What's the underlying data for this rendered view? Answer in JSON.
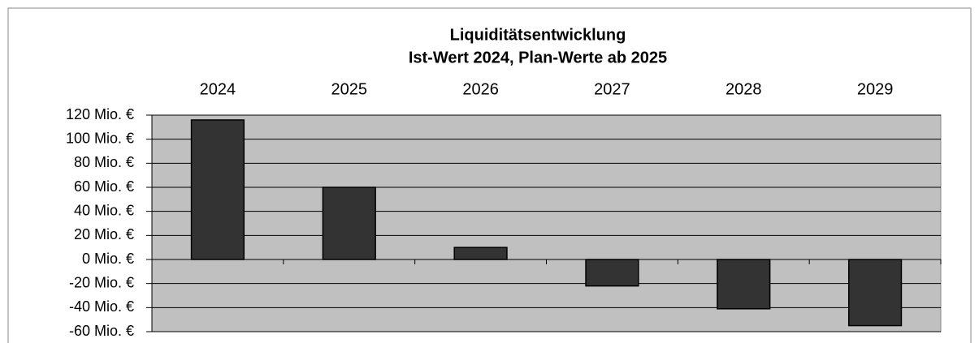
{
  "chart_data": {
    "type": "bar",
    "title": "Liquiditätsentwicklung",
    "subtitle": "Ist-Wert 2024, Plan-Werte ab 2025",
    "categories": [
      "2024",
      "2025",
      "2026",
      "2027",
      "2028",
      "2029"
    ],
    "values": [
      116,
      60,
      10,
      -22,
      -41,
      -55
    ],
    "color": "#333333",
    "background": "#c0c0c0",
    "ylim": [
      -60,
      120
    ],
    "yticks": [
      {
        "value": -60,
        "label": "-60 Mio. €"
      },
      {
        "value": -40,
        "label": "-40 Mio. €"
      },
      {
        "value": -20,
        "label": "-20 Mio. €"
      },
      {
        "value": 0,
        "label": "0 Mio. €"
      },
      {
        "value": 20,
        "label": "20 Mio. €"
      },
      {
        "value": 40,
        "label": "40 Mio. €"
      },
      {
        "value": 60,
        "label": "60 Mio. €"
      },
      {
        "value": 80,
        "label": "80 Mio. €"
      },
      {
        "value": 100,
        "label": "100 Mio. €"
      },
      {
        "value": 120,
        "label": "120 Mio. €"
      }
    ],
    "grid": true
  }
}
